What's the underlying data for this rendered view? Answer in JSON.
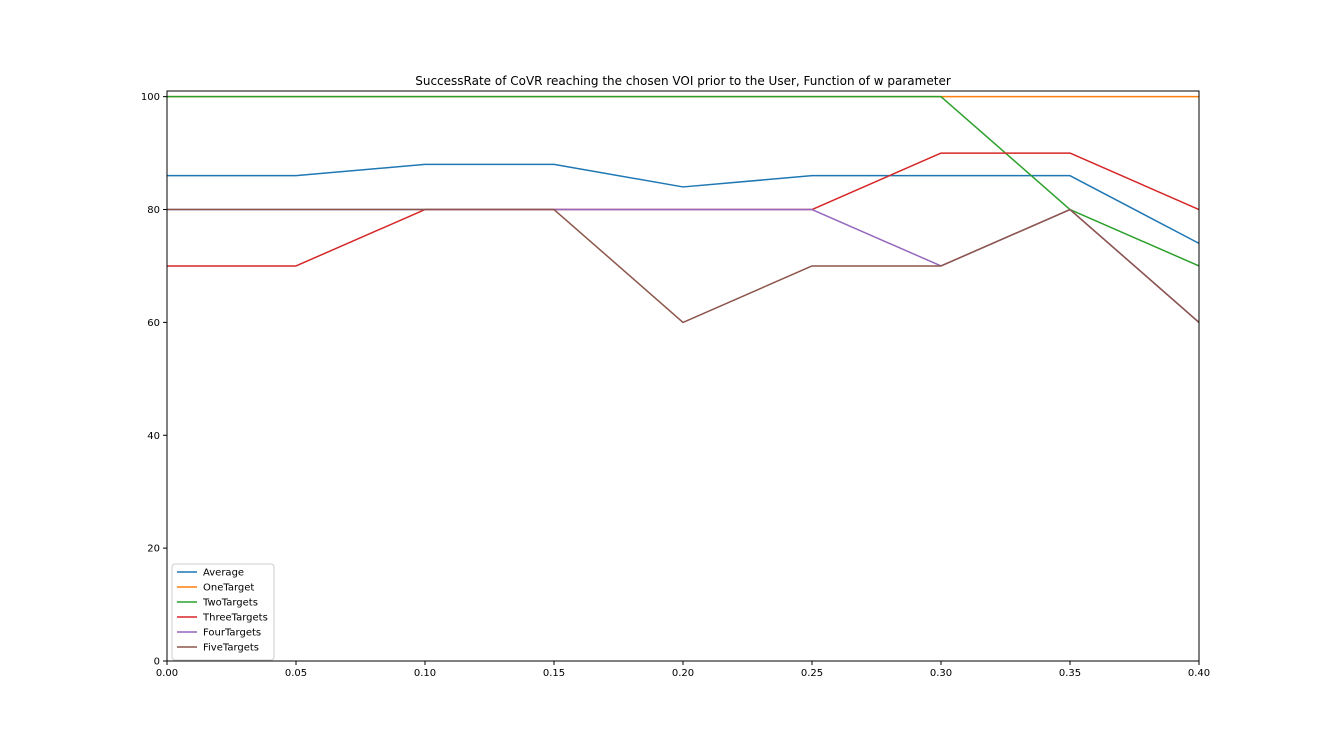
{
  "chart_data": {
    "type": "line",
    "title": "SuccessRate of CoVR reaching the chosen VOI prior to the User, Function of w parameter",
    "xlabel": "",
    "ylabel": "",
    "x": [
      0.0,
      0.05,
      0.1,
      0.15,
      0.2,
      0.25,
      0.3,
      0.35,
      0.4
    ],
    "xlim": [
      0.0,
      0.4
    ],
    "ylim": [
      0,
      101
    ],
    "xticks": [
      "0.00",
      "0.05",
      "0.10",
      "0.15",
      "0.20",
      "0.25",
      "0.30",
      "0.35",
      "0.40"
    ],
    "xtick_values": [
      0.0,
      0.05,
      0.1,
      0.15,
      0.2,
      0.25,
      0.3,
      0.35,
      0.4
    ],
    "yticks": [
      "0",
      "20",
      "40",
      "60",
      "80",
      "100"
    ],
    "ytick_values": [
      0,
      20,
      40,
      60,
      80,
      100
    ],
    "grid": false,
    "legend_position": "lower-left",
    "series": [
      {
        "name": "Average",
        "color": "#1f77b4",
        "values": [
          86,
          86,
          88,
          88,
          84,
          86,
          86,
          86,
          74
        ]
      },
      {
        "name": "OneTarget",
        "color": "#ff7f0e",
        "values": [
          100,
          100,
          100,
          100,
          100,
          100,
          100,
          100,
          100
        ]
      },
      {
        "name": "TwoTargets",
        "color": "#2ca02c",
        "values": [
          100,
          100,
          100,
          100,
          100,
          100,
          100,
          80,
          70
        ]
      },
      {
        "name": "ThreeTargets",
        "color": "#d62728",
        "values": [
          70,
          70,
          80,
          80,
          80,
          80,
          90,
          90,
          80
        ]
      },
      {
        "name": "FourTargets",
        "color": "#9467bd",
        "values": [
          80,
          80,
          80,
          80,
          80,
          80,
          70,
          80,
          60
        ]
      },
      {
        "name": "FiveTargets",
        "color": "#8c564b",
        "values": [
          80,
          80,
          80,
          80,
          60,
          70,
          70,
          80,
          60
        ]
      }
    ]
  }
}
